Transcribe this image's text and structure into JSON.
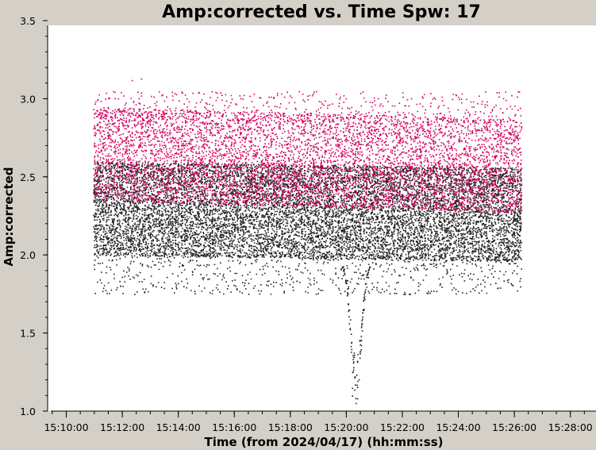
{
  "chart_data": {
    "type": "scatter",
    "title": "Amp:corrected vs. Time Spw: 17",
    "xlabel": "Time (from 2024/04/17) (hh:mm:ss)",
    "ylabel": "Amp:corrected",
    "x_ticks": [
      "15:10:00",
      "15:12:00",
      "15:14:00",
      "15:16:00",
      "15:18:00",
      "15:20:00",
      "15:22:00",
      "15:24:00",
      "15:26:00",
      "15:28:00"
    ],
    "y_ticks": [
      "1.0",
      "1.5",
      "2.0",
      "2.5",
      "3.0",
      "3.5"
    ],
    "xlim": [
      "15:09:20",
      "15:28:55"
    ],
    "ylim": [
      1.0,
      3.5
    ],
    "x_data_range": [
      "15:11:00",
      "15:26:15"
    ],
    "colors": {
      "series_1": "#d4005f",
      "series_2": "#222222",
      "plot_bg": "#ffffff",
      "frame_bg": "#d4d0c8"
    },
    "series": [
      {
        "color": "#d4005f",
        "y_range": [
          2.15,
          2.95
        ],
        "y_max_outliers": 3.13
      },
      {
        "color": "#222222",
        "y_range": [
          2.05,
          2.55
        ],
        "y_min_outliers": 1.1,
        "dip_time": "15:20:20",
        "dip_min": 1.1
      }
    ],
    "grid": false
  }
}
